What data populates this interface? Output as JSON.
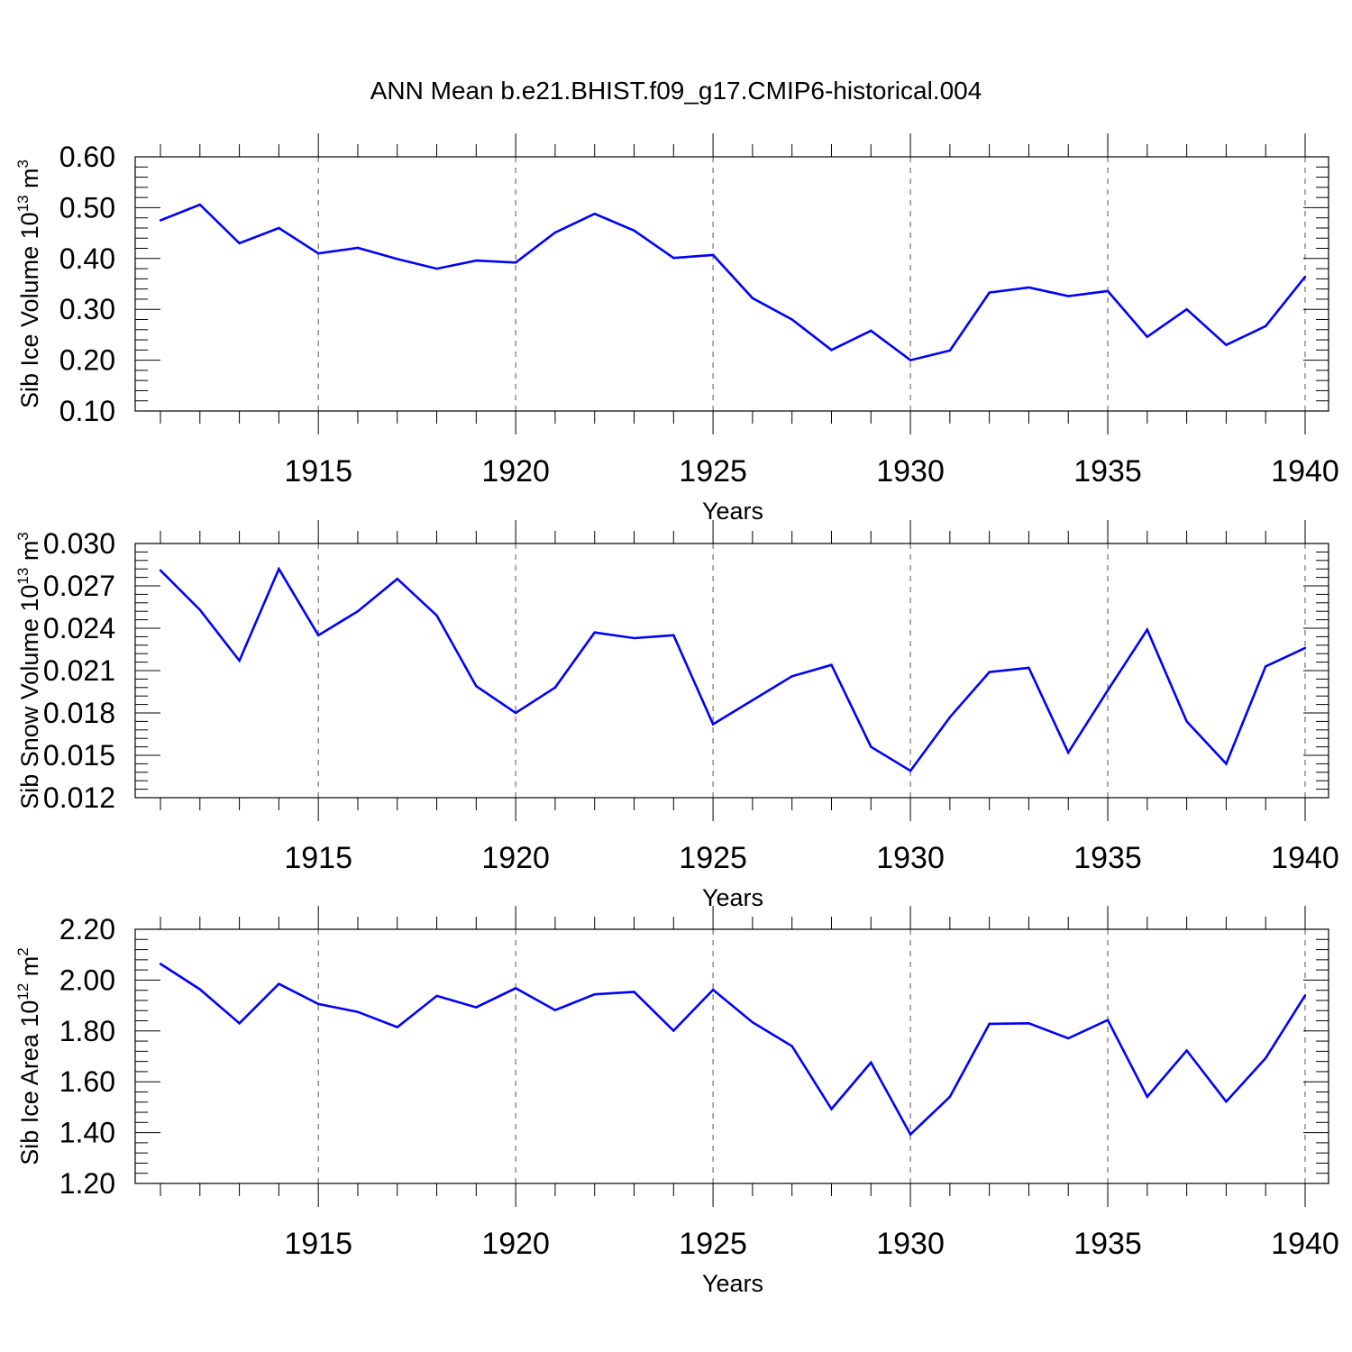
{
  "title": "ANN Mean b.e21.BHIST.f09_g17.CMIP6-historical.004",
  "line_color": "#0000ff",
  "chart_data": [
    {
      "type": "line",
      "title": "",
      "xlabel": "Years",
      "ylabel": {
        "text": "Sib Ice Volume 10",
        "sup1": "13",
        "mid": " m",
        "sup2": "3"
      },
      "xlim": [
        1911,
        1940
      ],
      "ylim": [
        0.1,
        0.6
      ],
      "x_ticks": [
        1915,
        1920,
        1925,
        1930,
        1935,
        1940
      ],
      "y_ticks": [
        "0.10",
        "0.20",
        "0.30",
        "0.40",
        "0.50",
        "0.60"
      ],
      "x": [
        1911,
        1912,
        1913,
        1914,
        1915,
        1916,
        1917,
        1918,
        1919,
        1920,
        1921,
        1922,
        1923,
        1924,
        1925,
        1926,
        1927,
        1928,
        1929,
        1930,
        1931,
        1932,
        1933,
        1934,
        1935,
        1936,
        1937,
        1938,
        1939,
        1940
      ],
      "values": [
        0.475,
        0.506,
        0.43,
        0.46,
        0.41,
        0.421,
        0.399,
        0.38,
        0.396,
        0.392,
        0.451,
        0.488,
        0.455,
        0.401,
        0.407,
        0.322,
        0.28,
        0.22,
        0.258,
        0.2,
        0.219,
        0.333,
        0.343,
        0.326,
        0.336,
        0.246,
        0.3,
        0.23,
        0.267,
        0.364
      ]
    },
    {
      "type": "line",
      "title": "",
      "xlabel": "Years",
      "ylabel": {
        "text": "Sib Snow Volume 10",
        "sup1": "13",
        "mid": " m",
        "sup2": "3"
      },
      "xlim": [
        1911,
        1940
      ],
      "ylim": [
        0.012,
        0.03
      ],
      "x_ticks": [
        1915,
        1920,
        1925,
        1930,
        1935,
        1940
      ],
      "y_ticks": [
        "0.012",
        "0.015",
        "0.018",
        "0.021",
        "0.024",
        "0.027",
        "0.030"
      ],
      "x": [
        1911,
        1912,
        1913,
        1914,
        1915,
        1916,
        1917,
        1918,
        1919,
        1920,
        1921,
        1922,
        1923,
        1924,
        1925,
        1926,
        1927,
        1928,
        1929,
        1930,
        1931,
        1932,
        1933,
        1934,
        1935,
        1936,
        1937,
        1938,
        1939,
        1940
      ],
      "values": [
        0.0281,
        0.0253,
        0.0217,
        0.0282,
        0.0235,
        0.0252,
        0.0275,
        0.0249,
        0.0199,
        0.018,
        0.0198,
        0.0237,
        0.0233,
        0.0235,
        0.0172,
        0.0189,
        0.0206,
        0.0214,
        0.0156,
        0.0139,
        0.0177,
        0.0209,
        0.0212,
        0.0152,
        0.0196,
        0.0239,
        0.0174,
        0.0144,
        0.0213,
        0.0226
      ]
    },
    {
      "type": "line",
      "title": "",
      "xlabel": "Years",
      "ylabel": {
        "text": "Sib Ice Area 10",
        "sup1": "12",
        "mid": " m",
        "sup2": "2"
      },
      "xlim": [
        1911,
        1940
      ],
      "ylim": [
        1.2,
        2.2
      ],
      "x_ticks": [
        1915,
        1920,
        1925,
        1930,
        1935,
        1940
      ],
      "y_ticks": [
        "1.20",
        "1.40",
        "1.60",
        "1.80",
        "2.00",
        "2.20"
      ],
      "x": [
        1911,
        1912,
        1913,
        1914,
        1915,
        1916,
        1917,
        1918,
        1919,
        1920,
        1921,
        1922,
        1923,
        1924,
        1925,
        1926,
        1927,
        1928,
        1929,
        1930,
        1931,
        1932,
        1933,
        1934,
        1935,
        1936,
        1937,
        1938,
        1939,
        1940
      ],
      "values": [
        2.064,
        1.964,
        1.83,
        1.985,
        1.906,
        1.875,
        1.815,
        1.938,
        1.893,
        1.968,
        1.882,
        1.944,
        1.954,
        1.801,
        1.962,
        1.834,
        1.74,
        1.493,
        1.676,
        1.393,
        1.541,
        1.828,
        1.83,
        1.771,
        1.843,
        1.541,
        1.723,
        1.522,
        1.693,
        1.94
      ]
    }
  ]
}
